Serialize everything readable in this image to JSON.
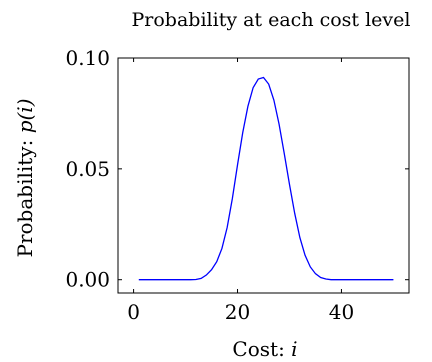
{
  "chart_data": {
    "type": "line",
    "title": "Probability at each cost level",
    "xlabel": "Cost:",
    "xlabel_var": "i",
    "ylabel": "Probability:",
    "ylabel_var": "p(i)",
    "xlim": [
      -3,
      53
    ],
    "ylim": [
      -0.006,
      0.1
    ],
    "xticks": [
      0,
      20,
      40
    ],
    "xtick_labels": [
      "0",
      "20",
      "40"
    ],
    "yticks": [
      0,
      0.05,
      0.1
    ],
    "ytick_labels": [
      "0.00",
      "0.05",
      "0.10"
    ],
    "grid": false,
    "series": [
      {
        "color": "#0000ff",
        "x": [
          1,
          2,
          3,
          4,
          5,
          6,
          7,
          8,
          9,
          10,
          11,
          12,
          13,
          14,
          15,
          16,
          17,
          18,
          19,
          20,
          21,
          22,
          23,
          24,
          25,
          26,
          27,
          28,
          29,
          30,
          31,
          32,
          33,
          34,
          35,
          36,
          37,
          38,
          39,
          40,
          41,
          42,
          43,
          44,
          45,
          46,
          47,
          48,
          49,
          50
        ],
        "y": [
          0,
          0,
          0,
          0,
          0,
          0,
          0,
          0,
          0,
          0,
          0,
          0.0001,
          0.0006,
          0.0021,
          0.0045,
          0.0081,
          0.0141,
          0.0235,
          0.0365,
          0.0518,
          0.0663,
          0.0782,
          0.0866,
          0.0905,
          0.0912,
          0.0882,
          0.081,
          0.0701,
          0.0568,
          0.043,
          0.03,
          0.019,
          0.011,
          0.0058,
          0.0027,
          0.001,
          0.0003,
          0,
          0,
          0,
          0,
          0,
          0,
          0,
          0,
          0,
          0,
          0,
          0,
          0
        ]
      }
    ]
  }
}
